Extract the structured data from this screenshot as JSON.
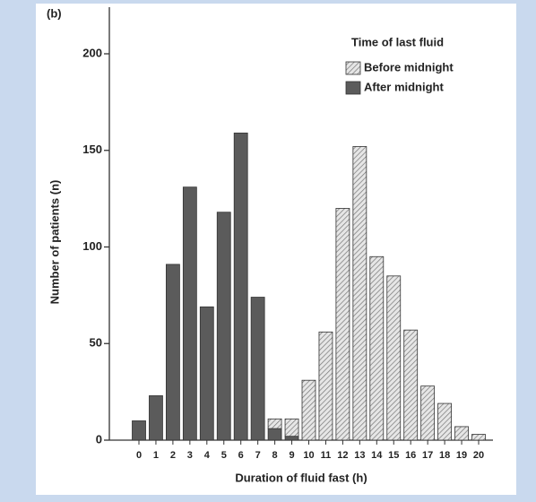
{
  "chart_data": {
    "type": "bar",
    "stacked": true,
    "panel_label": "(b)",
    "xlabel": "Duration of fluid fast (h)",
    "ylabel": "Number of patients (n)",
    "legend_title": "Time of last fluid",
    "legend": "upper right",
    "categories": [
      "0",
      "1",
      "2",
      "3",
      "4",
      "5",
      "6",
      "7",
      "8",
      "9",
      "10",
      "11",
      "12",
      "13",
      "14",
      "15",
      "16",
      "17",
      "18",
      "19",
      "20"
    ],
    "series": [
      {
        "name": "After midnight",
        "color": "#5b5b5b",
        "pattern": "solid",
        "values": [
          10,
          23,
          91,
          131,
          69,
          118,
          159,
          74,
          6,
          2,
          0,
          0,
          0,
          0,
          0,
          0,
          0,
          0,
          0,
          0,
          0
        ]
      },
      {
        "name": "Before midnight",
        "color": "#d4d4d4",
        "pattern": "hatch",
        "values": [
          0,
          0,
          0,
          0,
          0,
          0,
          0,
          0,
          5,
          9,
          31,
          56,
          120,
          152,
          95,
          85,
          57,
          28,
          19,
          7,
          3
        ]
      }
    ],
    "ylim": [
      0,
      225
    ],
    "yticks": [
      0,
      50,
      100,
      150,
      200
    ]
  }
}
